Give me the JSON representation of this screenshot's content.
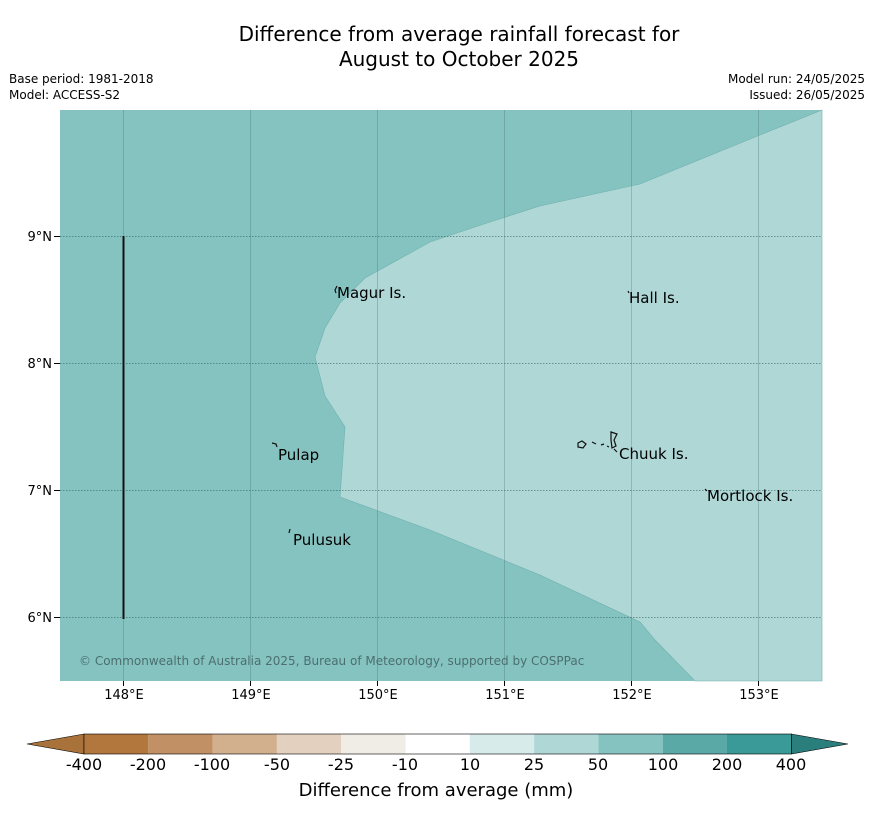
{
  "header": {
    "title_line1": "Difference from average rainfall forecast for",
    "title_line2": "August to October 2025",
    "base_period": "Base period: 1981-2018",
    "model": "Model: ACCESS-S2",
    "model_run": "Model run: 24/05/2025",
    "issued": "Issued: 26/05/2025"
  },
  "map": {
    "lat_labels": [
      "9°N",
      "8°N",
      "7°N",
      "6°N"
    ],
    "lon_labels": [
      "148°E",
      "149°E",
      "150°E",
      "151°E",
      "152°E",
      "153°E"
    ],
    "places": {
      "magur": "Magur Is.",
      "hall": "Hall Is.",
      "pulap": "Pulap",
      "chuuk": "Chuuk Is.",
      "mortlock": "Mortlock Is.",
      "pulusuk": "Pulusuk"
    },
    "copyright": "© Commonwealth of Australia 2025, Bureau of Meteorology, supported by COSPPac",
    "colors": {
      "band_50_100": "#85c3c1",
      "band_25_50": "#aed7d6",
      "grid": "#35605f"
    }
  },
  "colorbar": {
    "title": "Difference from average (mm)",
    "tick_labels": [
      "-400",
      "-200",
      "-100",
      "-50",
      "-25",
      "-10",
      "10",
      "25",
      "50",
      "100",
      "200",
      "400"
    ],
    "colors": [
      "#a8723a",
      "#b2773d",
      "#c19065",
      "#d2b08e",
      "#e3d0bf",
      "#f0ede6",
      "#ffffff",
      "#d7ecea",
      "#aed7d6",
      "#85c3c1",
      "#5ba9a7",
      "#3a9a97",
      "#2a7f7c"
    ]
  }
}
